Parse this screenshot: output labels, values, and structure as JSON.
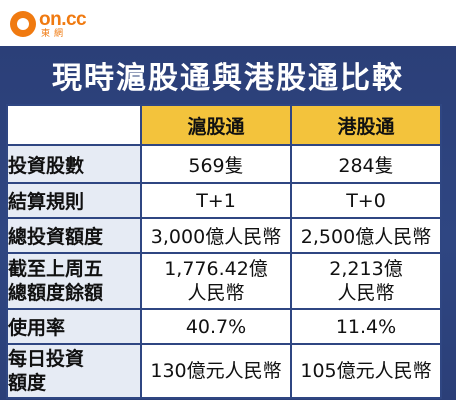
{
  "logo": {
    "word": "on.cc",
    "sub": "東網"
  },
  "title": "現時滬股通與港股通比較",
  "table": {
    "headers": [
      "",
      "滬股通",
      "港股通"
    ],
    "rows": [
      {
        "label": [
          "投資股數"
        ],
        "sh": [
          "569隻"
        ],
        "hk": [
          "284隻"
        ]
      },
      {
        "label": [
          "結算規則"
        ],
        "sh": [
          "T+1"
        ],
        "hk": [
          "T+0"
        ]
      },
      {
        "label": [
          "總投資額度"
        ],
        "sh": [
          "3,000億人民幣"
        ],
        "hk": [
          "2,500億人民幣"
        ]
      },
      {
        "label": [
          "截至上周五",
          "總額度餘額"
        ],
        "sh": [
          "1,776.42億",
          "人民幣"
        ],
        "hk": [
          "2,213億",
          "人民幣"
        ]
      },
      {
        "label": [
          "使用率"
        ],
        "sh": [
          "40.7%"
        ],
        "hk": [
          "11.4%"
        ]
      },
      {
        "label": [
          "每日投資",
          "額度"
        ],
        "sh": [
          "130億元人民幣"
        ],
        "hk": [
          "105億元人民幣"
        ]
      }
    ]
  },
  "colors": {
    "panel": "#2f4682",
    "header_highlight": "#f3c33c",
    "label_bg": "#e6ebf4",
    "logo": "#f07a10"
  }
}
